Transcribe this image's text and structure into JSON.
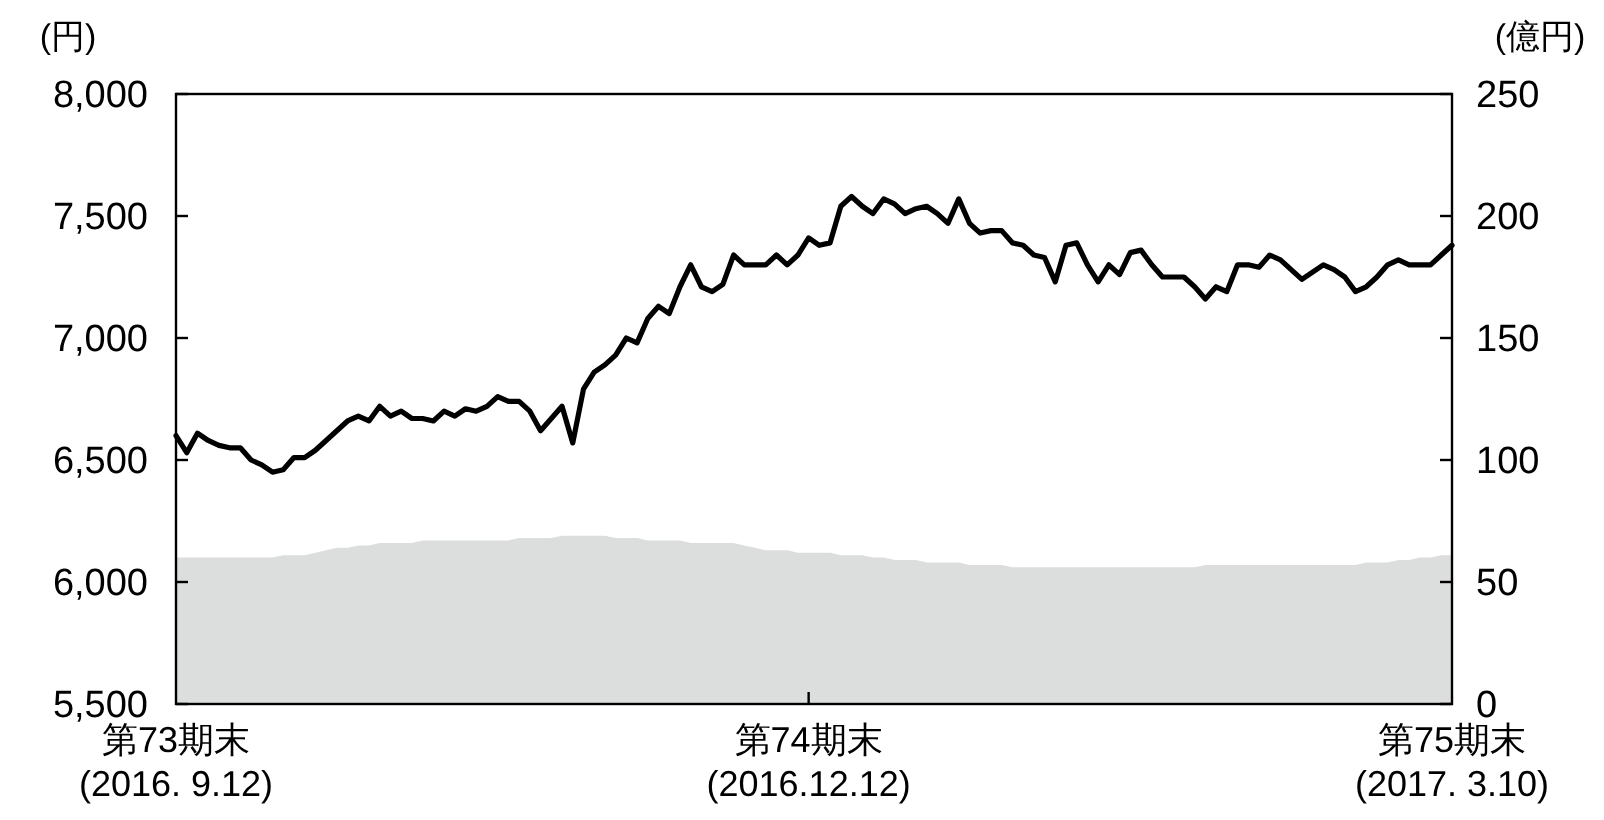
{
  "chart_data": {
    "type": "line",
    "ylabel": "(円)",
    "y2label": "(億円)",
    "categories": [
      "第73期末\n(2016. 9.12)",
      null,
      null,
      null,
      null,
      null,
      null,
      null,
      null,
      null,
      null,
      null,
      null,
      null,
      null,
      null,
      null,
      null,
      null,
      null,
      null,
      null,
      null,
      null,
      null,
      null,
      null,
      null,
      null,
      null,
      null,
      null,
      null,
      null,
      null,
      null,
      null,
      null,
      null,
      null,
      null,
      null,
      null,
      null,
      null,
      null,
      null,
      null,
      null,
      null,
      null,
      null,
      null,
      null,
      null,
      null,
      null,
      null,
      null,
      "第74期末\n(2016.12.12)",
      null,
      null,
      null,
      null,
      null,
      null,
      null,
      null,
      null,
      null,
      null,
      null,
      null,
      null,
      null,
      null,
      null,
      null,
      null,
      null,
      null,
      null,
      null,
      null,
      null,
      null,
      null,
      null,
      null,
      null,
      null,
      null,
      null,
      null,
      null,
      null,
      null,
      null,
      null,
      null,
      null,
      null,
      null,
      null,
      null,
      null,
      null,
      null,
      null,
      null,
      null,
      null,
      null,
      null,
      null,
      null,
      null,
      null,
      null,
      "第75期末\n(2017. 3.10)"
    ],
    "series": [
      {
        "type": "area",
        "axis": "y2",
        "color": "#dcdddd",
        "values": [
          60,
          60,
          60,
          60,
          60,
          60,
          60,
          60,
          60,
          60,
          61,
          61,
          61,
          62,
          63,
          64,
          64,
          65,
          65,
          66,
          66,
          66,
          66,
          67,
          67,
          67,
          67,
          67,
          67,
          67,
          67,
          67,
          68,
          68,
          68,
          68,
          69,
          69,
          69,
          69,
          69,
          68,
          68,
          68,
          67,
          67,
          67,
          67,
          66,
          66,
          66,
          66,
          66,
          65,
          64,
          63,
          63,
          63,
          62,
          62,
          62,
          62,
          61,
          61,
          61,
          60,
          60,
          59,
          59,
          59,
          58,
          58,
          58,
          58,
          57,
          57,
          57,
          57,
          56,
          56,
          56,
          56,
          56,
          56,
          56,
          56,
          56,
          56,
          56,
          56,
          56,
          56,
          56,
          56,
          56,
          56,
          57,
          57,
          57,
          57,
          57,
          57,
          57,
          57,
          57,
          57,
          57,
          57,
          57,
          57,
          57,
          58,
          58,
          58,
          59,
          59,
          60,
          60,
          61,
          61
        ]
      },
      {
        "color": "#000000",
        "values": [
          6600,
          6530,
          6610,
          6580,
          6560,
          6550,
          6550,
          6500,
          6480,
          6450,
          6460,
          6510,
          6510,
          6540,
          6580,
          6620,
          6660,
          6680,
          6660,
          6720,
          6680,
          6700,
          6670,
          6670,
          6660,
          6700,
          6680,
          6710,
          6700,
          6720,
          6760,
          6740,
          6740,
          6700,
          6620,
          6670,
          6720,
          6570,
          6790,
          6860,
          6890,
          6930,
          7000,
          6980,
          7080,
          7130,
          7100,
          7210,
          7300,
          7210,
          7190,
          7220,
          7340,
          7300,
          7300,
          7300,
          7340,
          7300,
          7340,
          7410,
          7380,
          7390,
          7540,
          7580,
          7540,
          7510,
          7570,
          7550,
          7510,
          7530,
          7540,
          7510,
          7470,
          7570,
          7470,
          7430,
          7440,
          7440,
          7390,
          7380,
          7340,
          7330,
          7230,
          7380,
          7390,
          7300,
          7230,
          7300,
          7260,
          7350,
          7360,
          7300,
          7250,
          7250,
          7250,
          7210,
          7160,
          7210,
          7190,
          7300,
          7300,
          7290,
          7340,
          7320,
          7280,
          7240,
          7270,
          7300,
          7280,
          7250,
          7190,
          7210,
          7250,
          7300,
          7320,
          7300,
          7300,
          7300,
          7340,
          7380
        ]
      }
    ],
    "ylim": [
      5500,
      8000
    ],
    "yticks": [
      {
        "value": 5500,
        "label": "5,500"
      },
      {
        "value": 6000,
        "label": "6,000"
      },
      {
        "value": 6500,
        "label": "6,500"
      },
      {
        "value": 7000,
        "label": "7,000"
      },
      {
        "value": 7500,
        "label": "7,500"
      },
      {
        "value": 8000,
        "label": "8,000"
      }
    ],
    "y2lim": [
      0,
      250
    ],
    "y2ticks": [
      0,
      50,
      100,
      150,
      200,
      250
    ]
  }
}
